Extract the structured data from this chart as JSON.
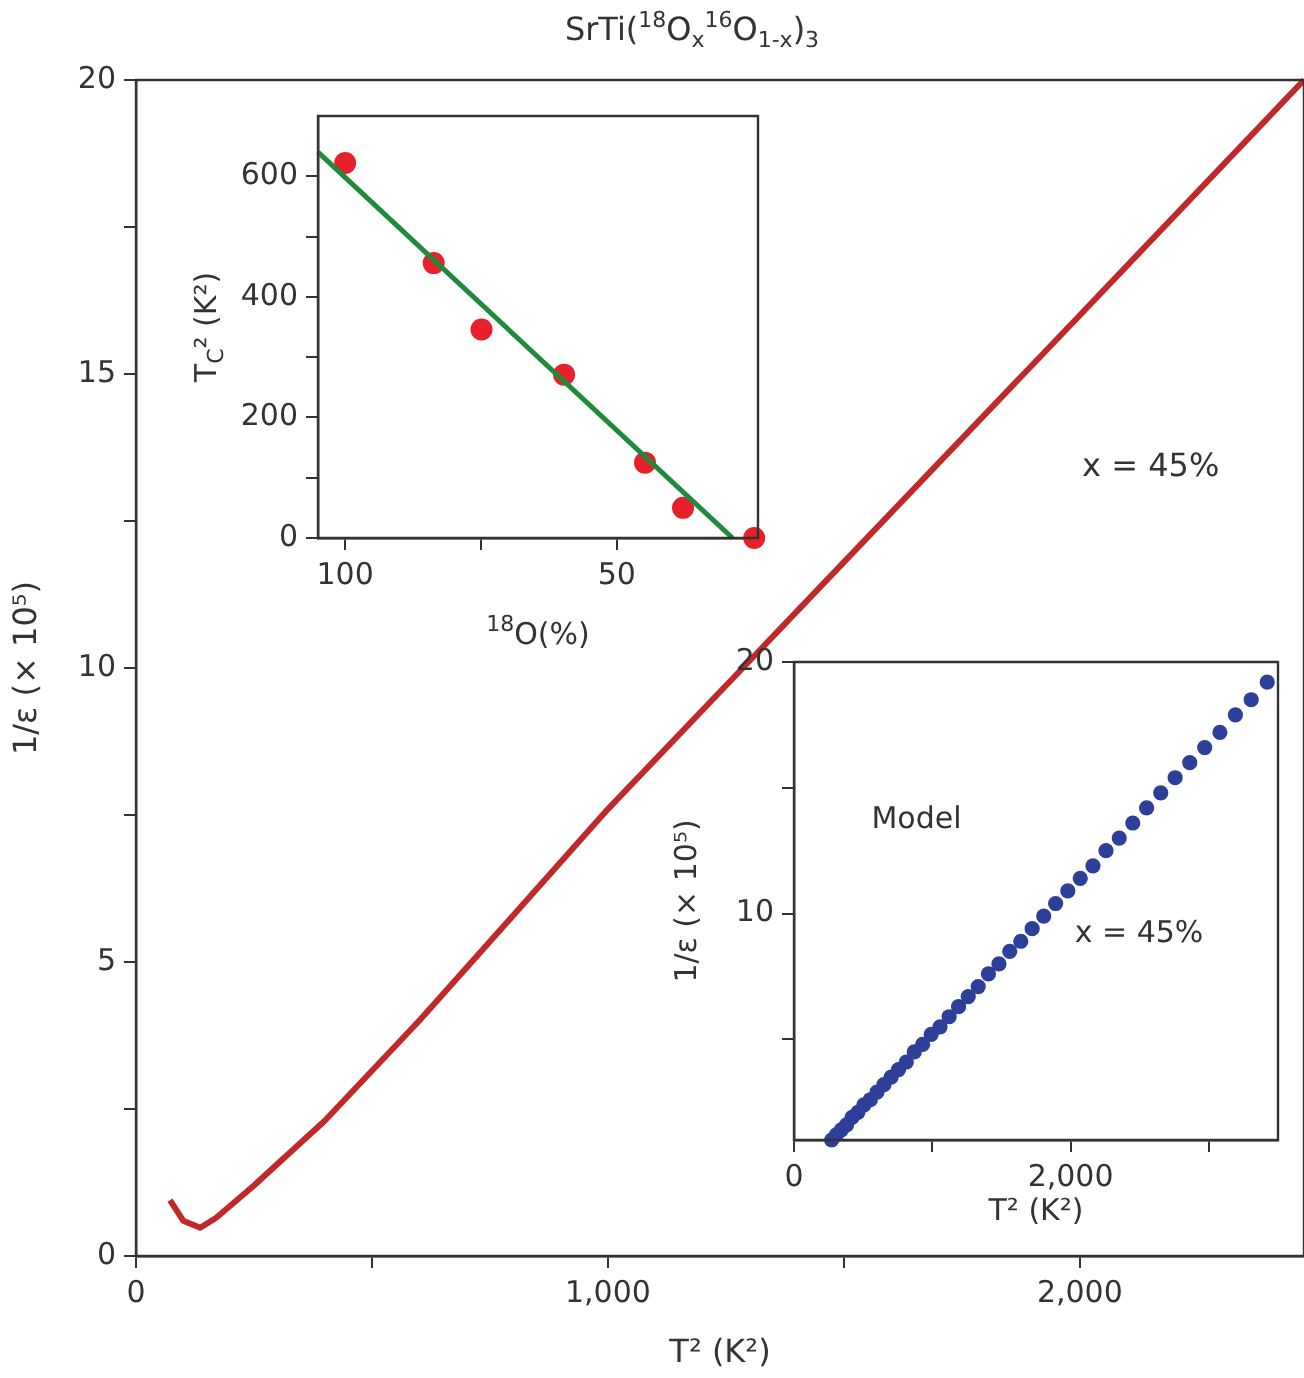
{
  "chart_data": [
    {
      "type": "line",
      "title": "SrTi($^{18}$O$_{x}$$^{16}$O$_{1-x}$)$_{3}$",
      "xlabel": "T² (K²)",
      "ylabel": "1/ε (× 10⁵)",
      "xlim": [
        0,
        2475
      ],
      "xticks": [
        0,
        {
          "value": 500,
          "label": null
        },
        {
          "value": 1000,
          "label": "1,000"
        },
        {
          "value": 1500,
          "label": null
        },
        {
          "value": 2000,
          "label": "2,000"
        }
      ],
      "ylim": [
        0,
        20
      ],
      "yticks": [
        0,
        {
          "value": 2.5,
          "label": null
        },
        5,
        {
          "value": 7.5,
          "label": null
        },
        10,
        {
          "value": 12.5,
          "label": null
        },
        15,
        {
          "value": 17.5,
          "label": null
        },
        20
      ],
      "series": [
        {
          "color": "#c0282a",
          "x": [
            72,
            100,
            136,
            170,
            250,
            400,
            600,
            1000,
            1500,
            2000,
            2475
          ],
          "values": [
            0.95,
            0.6,
            0.48,
            0.65,
            1.2,
            2.3,
            4.0,
            7.6,
            11.8,
            16.0,
            20
          ]
        }
      ],
      "annotations": [
        "x = 45%"
      ],
      "grid": false,
      "legend": false
    },
    {
      "type": "scatter",
      "xlabel": "$^{18}$O(%)",
      "ylabel": "T$_{C}$² (K²)",
      "xlim": [
        105,
        24
      ],
      "xticks": [
        100,
        {
          "value": 75,
          "label": null
        },
        50
      ],
      "ylim": [
        0,
        700
      ],
      "yticks": [
        0,
        {
          "value": 100,
          "label": null
        },
        200,
        {
          "value": 300,
          "label": null
        },
        400,
        {
          "value": 500,
          "label": null
        },
        600
      ],
      "series": [
        {
          "type": "line",
          "color": "#1f8a3c",
          "x": [
            105,
            28.7
          ],
          "values": [
            640,
            0
          ]
        },
        {
          "marker": "circle",
          "color": "#e8202a",
          "x": [
            100,
            83.7,
            74.9,
            59.7,
            44.8,
            37.8,
            24.7
          ],
          "values": [
            622,
            456,
            346,
            271,
            125,
            50,
            0
          ]
        }
      ],
      "grid": false,
      "legend": false
    },
    {
      "type": "scatter",
      "xlabel": "T² (K²)",
      "ylabel": "1/ε (× 10⁵)",
      "xlim": [
        0,
        3500
      ],
      "xticks": [
        0,
        {
          "value": 1000,
          "label": null
        },
        {
          "value": 2000,
          "label": "2,000"
        },
        {
          "value": 3000,
          "label": null
        }
      ],
      "ylim": [
        1,
        20
      ],
      "yticks": [
        {
          "value": 5,
          "label": null
        },
        10,
        {
          "value": 15,
          "label": null
        },
        20
      ],
      "series": [
        {
          "color": "#2e3f9a",
          "x": [
            272,
            306,
            342,
            380,
            420,
            462,
            506,
            552,
            600,
            650,
            702,
            756,
            812,
            870,
            930,
            992,
            1056,
            1122,
            1190,
            1260,
            1332,
            1406,
            1482,
            1560,
            1640,
            1722,
            1806,
            1892,
            1980,
            2070,
            2162,
            2256,
            2352,
            2450,
            2550,
            2652,
            2756,
            2862,
            2970,
            3080,
            3192,
            3306,
            3422
          ],
          "values": [
            1.0,
            1.2,
            1.4,
            1.6,
            1.9,
            2.1,
            2.4,
            2.6,
            2.9,
            3.2,
            3.5,
            3.8,
            4.1,
            4.5,
            4.8,
            5.2,
            5.5,
            5.9,
            6.3,
            6.7,
            7.1,
            7.6,
            8.0,
            8.5,
            8.9,
            9.4,
            9.9,
            10.4,
            10.9,
            11.4,
            11.9,
            12.5,
            13.0,
            13.6,
            14.2,
            14.8,
            15.4,
            16.0,
            16.6,
            17.2,
            17.9,
            18.5,
            19.2
          ]
        }
      ],
      "annotations": [
        "Model",
        "x = 45%"
      ],
      "marker": "circle",
      "grid": false,
      "legend": false
    }
  ]
}
